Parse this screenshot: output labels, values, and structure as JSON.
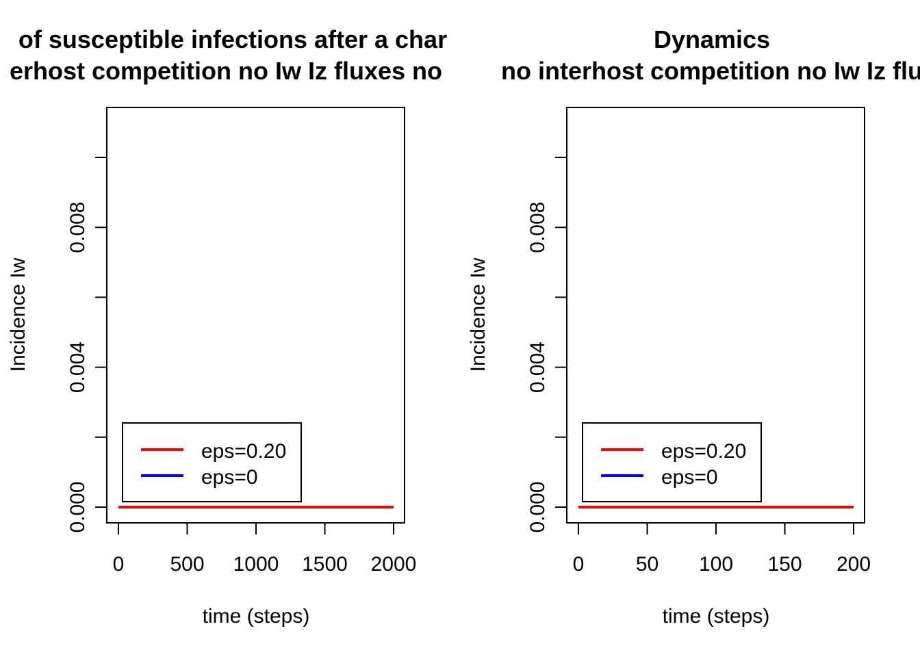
{
  "chart_data": [
    {
      "type": "line",
      "title_line1": "of susceptible infections after a char",
      "title_line2": "erhost competition no Iw Iz fluxes no",
      "xlabel": "time (steps)",
      "ylabel": "Incidence Iw",
      "xlim": [
        0,
        2000
      ],
      "ylim": [
        0,
        0.01
      ],
      "xticks": [
        0,
        500,
        1000,
        1500,
        2000
      ],
      "xtick_labels": [
        "0",
        "500",
        "1000",
        "1500",
        "2000"
      ],
      "yticks": [
        0.0,
        0.002,
        0.004,
        0.006,
        0.008,
        0.01
      ],
      "ytick_labels": [
        "0.000",
        "",
        "0.004",
        "",
        "0.008",
        ""
      ],
      "legend_position": "bottom-left",
      "series": [
        {
          "name": "eps=0.20",
          "color": "#ff0000",
          "x": [
            0,
            2000
          ],
          "y": [
            0,
            0
          ]
        },
        {
          "name": "eps=0",
          "color": "#0000ff",
          "x": [
            0,
            2000
          ],
          "y": [
            0,
            0
          ]
        }
      ]
    },
    {
      "type": "line",
      "title_line1": "Dynamics",
      "title_line2": "no interhost competition no Iw Iz flu",
      "xlabel": "time (steps)",
      "ylabel": "Incidence Iw",
      "xlim": [
        0,
        200
      ],
      "ylim": [
        0,
        0.01
      ],
      "xticks": [
        0,
        50,
        100,
        150,
        200
      ],
      "xtick_labels": [
        "0",
        "50",
        "100",
        "150",
        "200"
      ],
      "yticks": [
        0.0,
        0.002,
        0.004,
        0.006,
        0.008,
        0.01
      ],
      "ytick_labels": [
        "0.000",
        "",
        "0.004",
        "",
        "0.008",
        ""
      ],
      "legend_position": "bottom-left",
      "series": [
        {
          "name": "eps=0.20",
          "color": "#ff0000",
          "x": [
            0,
            200
          ],
          "y": [
            0,
            0
          ]
        },
        {
          "name": "eps=0",
          "color": "#0000ff",
          "x": [
            0,
            200
          ],
          "y": [
            0,
            0
          ]
        }
      ]
    }
  ]
}
